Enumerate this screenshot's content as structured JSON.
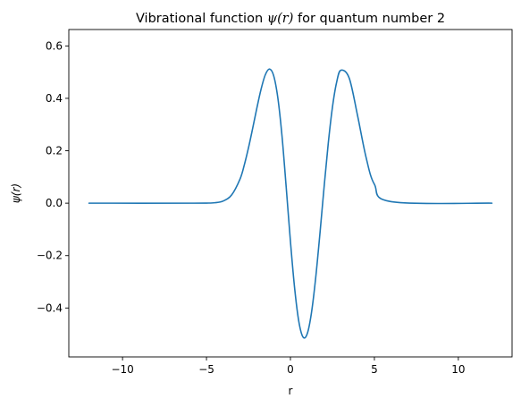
{
  "chart_data": {
    "type": "line",
    "title_prefix": "Vibrational function ",
    "title_symbol": "ψ(r)",
    "title_suffix": " for quantum number 2",
    "xlabel": "r",
    "ylabel": "ψ(r)",
    "xlim": [
      -13.2,
      13.2
    ],
    "ylim": [
      -0.5866,
      0.6626
    ],
    "x_ticks": [
      -10,
      -5,
      0,
      5,
      10
    ],
    "x_tick_labels": [
      "−10",
      "−5",
      "0",
      "5",
      "10"
    ],
    "y_ticks": [
      -0.4,
      -0.2,
      0.0,
      0.2,
      0.4,
      0.6
    ],
    "y_tick_labels": [
      "−0.4",
      "−0.2",
      "0.0",
      "0.2",
      "0.4",
      "0.6"
    ],
    "grid": false,
    "legend": "none",
    "series": [
      {
        "color": "#1f77b4",
        "x": [
          -12.0,
          -6.0,
          -5.0,
          -4.5,
          -4.0,
          -3.5,
          -3.0,
          -2.75,
          -2.5,
          -2.25,
          -2.0,
          -1.75,
          -1.5,
          -1.25,
          -1.0,
          -0.75,
          -0.5,
          -0.25,
          0.0,
          0.25,
          0.5,
          0.75,
          1.0,
          1.25,
          1.5,
          1.75,
          2.0,
          2.25,
          2.5,
          2.75,
          3.0,
          3.5,
          4.0,
          4.5,
          5.0,
          6.0,
          12.0
        ],
        "y": [
          0.0,
          0.0,
          0.0003,
          0.0017,
          0.0083,
          0.0317,
          0.0925,
          0.1453,
          0.2109,
          0.2854,
          0.3628,
          0.4346,
          0.4894,
          0.5119,
          0.4867,
          0.4017,
          0.2546,
          0.059,
          -0.1458,
          -0.3246,
          -0.4517,
          -0.5108,
          -0.4982,
          -0.4192,
          -0.2873,
          -0.1209,
          0.0581,
          0.2266,
          0.3653,
          0.4609,
          0.5071,
          0.4773,
          0.3335,
          0.1761,
          0.0721,
          0.0058,
          0.0
        ]
      }
    ]
  }
}
